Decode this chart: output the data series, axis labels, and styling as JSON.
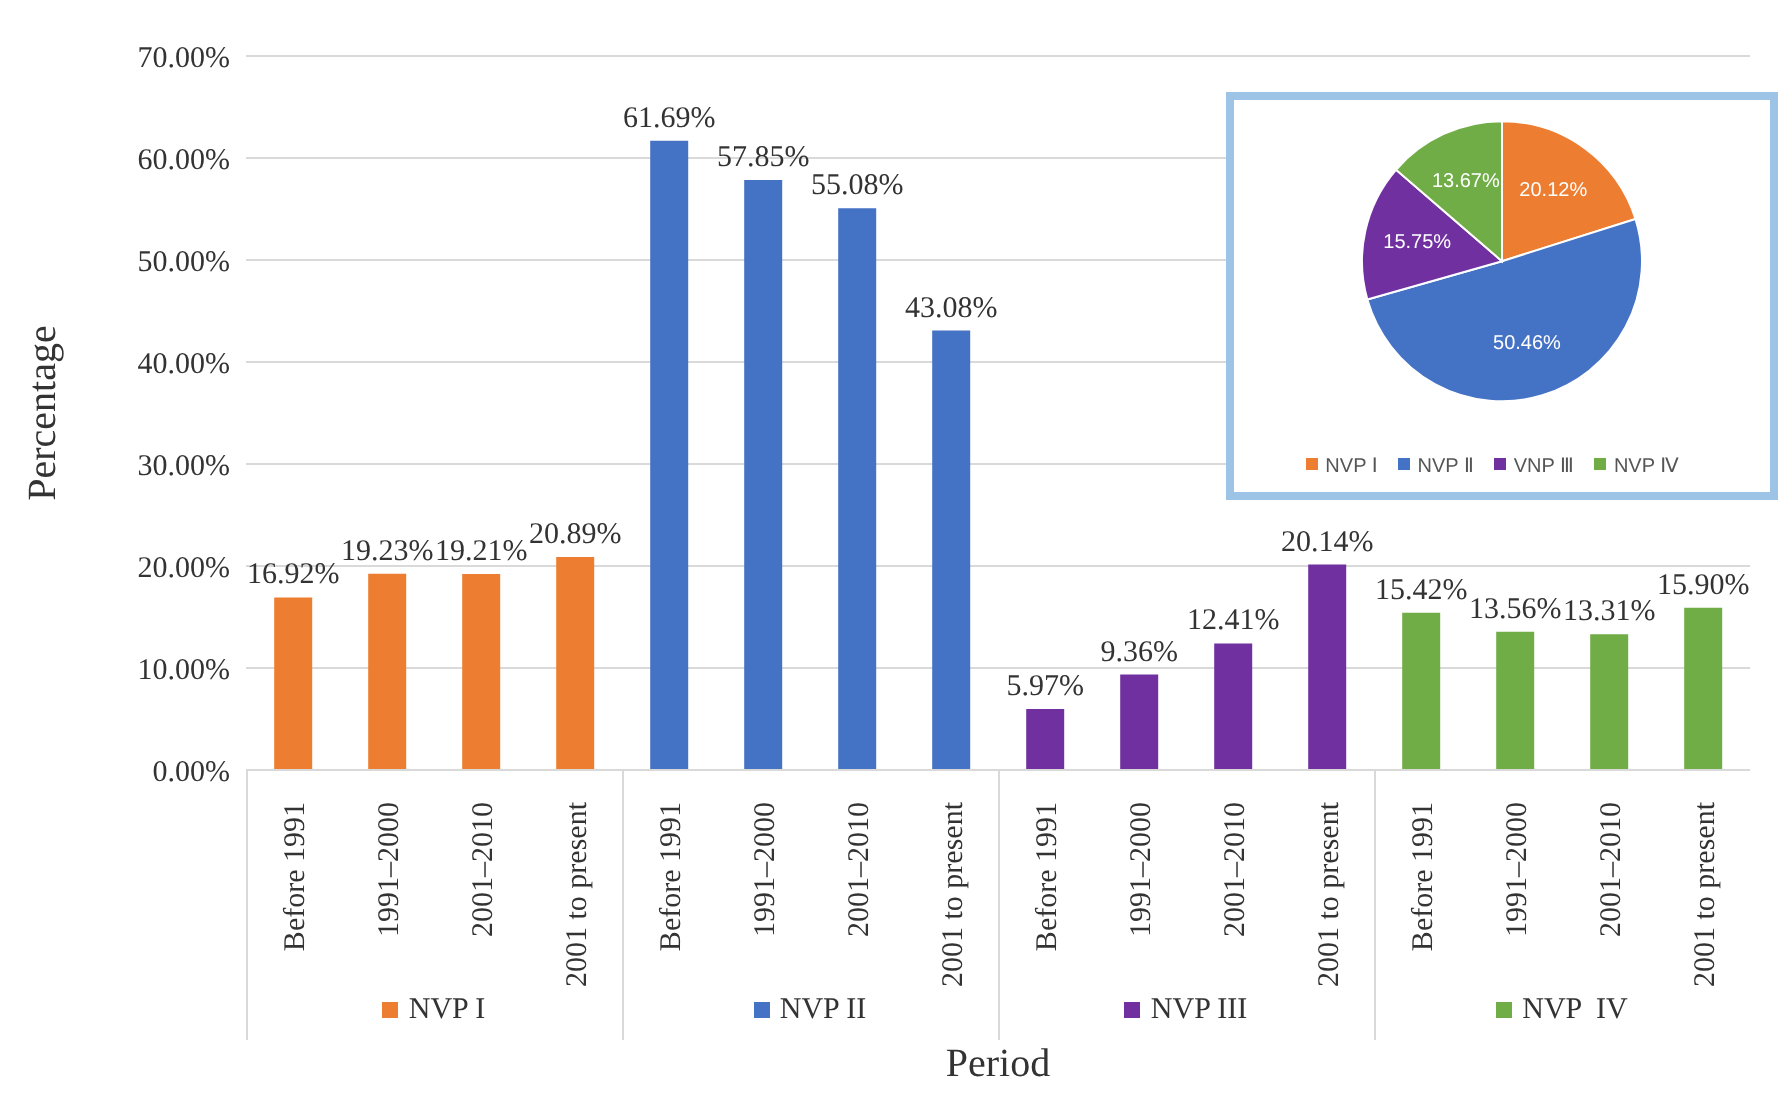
{
  "chart_data": [
    {
      "type": "bar",
      "xlabel": "Period",
      "ylabel": "Percentage",
      "categories": [
        "Before 1991",
        "1991–2000",
        "2001–2010",
        "2001 to present",
        "Before 1991",
        "1991–2000",
        "2001–2010",
        "2001 to present",
        "Before 1991",
        "1991–2000",
        "2001–2010",
        "2001 to present",
        "Before 1991",
        "1991–2000",
        "2001–2010",
        "2001 to present"
      ],
      "series": [
        {
          "name": "NVP I",
          "color": "#ed7d31",
          "values": [
            16.92,
            19.23,
            19.21,
            20.89,
            null,
            null,
            null,
            null,
            null,
            null,
            null,
            null,
            null,
            null,
            null,
            null
          ],
          "value_labels": [
            "16.92%",
            "19.23%",
            "19.21%",
            "20.89%",
            null,
            null,
            null,
            null,
            null,
            null,
            null,
            null,
            null,
            null,
            null,
            null
          ]
        },
        {
          "name": "NVP II",
          "color": "#4472c4",
          "values": [
            null,
            null,
            null,
            null,
            61.69,
            57.85,
            55.08,
            43.08,
            null,
            null,
            null,
            null,
            null,
            null,
            null,
            null
          ],
          "value_labels": [
            null,
            null,
            null,
            null,
            "61.69%",
            "57.85%",
            "55.08%",
            "43.08%",
            null,
            null,
            null,
            null,
            null,
            null,
            null,
            null
          ]
        },
        {
          "name": "NVP III",
          "color": "#7030a0",
          "values": [
            null,
            null,
            null,
            null,
            null,
            null,
            null,
            null,
            5.97,
            9.36,
            12.41,
            20.14,
            null,
            null,
            null,
            null
          ],
          "value_labels": [
            null,
            null,
            null,
            null,
            null,
            null,
            null,
            null,
            "5.97%",
            "9.36%",
            "12.41%",
            "20.14%",
            null,
            null,
            null,
            null
          ]
        },
        {
          "name": "NVP  IV",
          "color": "#70ad47",
          "values": [
            null,
            null,
            null,
            null,
            null,
            null,
            null,
            null,
            null,
            null,
            null,
            null,
            15.42,
            13.56,
            13.31,
            15.9
          ],
          "value_labels": [
            null,
            null,
            null,
            null,
            null,
            null,
            null,
            null,
            null,
            null,
            null,
            null,
            "15.42%",
            "13.56%",
            "13.31%",
            "15.90%"
          ]
        }
      ],
      "ylim": [
        0,
        70
      ],
      "yticks": [
        {
          "value": 0,
          "label": "0.00%"
        },
        {
          "value": 10,
          "label": "10.00%"
        },
        {
          "value": 20,
          "label": "20.00%"
        },
        {
          "value": 30,
          "label": "30.00%"
        },
        {
          "value": 40,
          "label": "40.00%"
        },
        {
          "value": 50,
          "label": "50.00%"
        },
        {
          "value": 60,
          "label": "60.00%"
        },
        {
          "value": 70,
          "label": "70.00%"
        }
      ],
      "grid": "y",
      "legend": "bottom"
    },
    {
      "type": "pie",
      "categories": [
        "NVP Ⅰ",
        "NVP Ⅱ",
        "VNP Ⅲ",
        "NVP Ⅳ"
      ],
      "values": [
        20.12,
        50.46,
        15.75,
        13.67
      ],
      "colors": [
        "#ed7d31",
        "#4472c4",
        "#7030a0",
        "#70ad47"
      ],
      "value_labels": [
        "20.12%",
        "50.46%",
        "15.75%",
        "13.67%"
      ],
      "legend": "bottom"
    }
  ]
}
